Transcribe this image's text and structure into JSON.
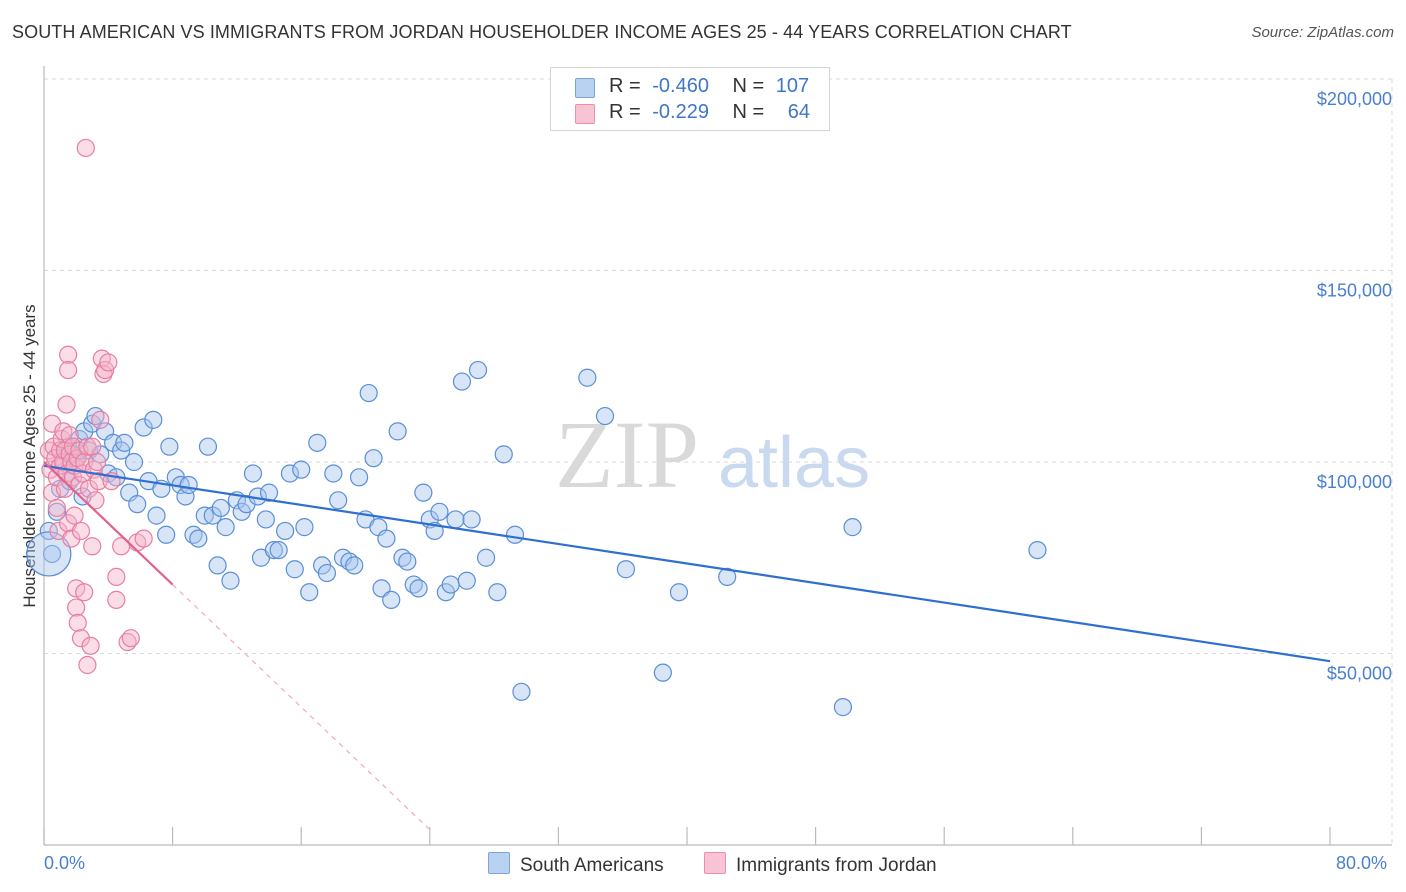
{
  "title": "SOUTH AMERICAN VS IMMIGRANTS FROM JORDAN HOUSEHOLDER INCOME AGES 25 - 44 YEARS CORRELATION CHART",
  "source": "Source: ZipAtlas.com",
  "watermark": {
    "zip": "ZIP",
    "atlas": "atlas"
  },
  "legend": {
    "r_label": "R =",
    "n_label": "N =",
    "rows": [
      {
        "r": "-0.460",
        "n": "107"
      },
      {
        "r": "-0.229",
        "n": "64"
      }
    ]
  },
  "colors": {
    "blue_fill": "#a9c6ee",
    "blue_stroke": "#5a8fd6",
    "blue_line": "#2f6fd0",
    "pink_fill": "#f5b3c9",
    "pink_stroke": "#e77fa2",
    "pink_line": "#e0628d",
    "grid": "#d9d9d9",
    "axis_text": "#4a7fcf"
  },
  "chart_data": {
    "type": "scatter",
    "title": "SOUTH AMERICAN VS IMMIGRANTS FROM JORDAN HOUSEHOLDER INCOME AGES 25 - 44 YEARS CORRELATION CHART",
    "xlabel": "",
    "ylabel": "Householder Income Ages 25 - 44 years",
    "xlim": [
      0,
      80
    ],
    "ylim": [
      0,
      200000
    ],
    "x_tick_labels": [
      "0.0%",
      "80.0%"
    ],
    "y_ticks": [
      50000,
      100000,
      150000,
      200000
    ],
    "y_tick_labels": [
      "$50,000",
      "$100,000",
      "$150,000",
      "$200,000"
    ],
    "grid": true,
    "legend_position": "top-center",
    "series": [
      {
        "name": "South Americans",
        "r": -0.46,
        "n": 107,
        "trend": {
          "x": [
            0,
            80
          ],
          "y": [
            99000,
            48000
          ]
        },
        "points": [
          [
            0.5,
            76000
          ],
          [
            0.8,
            87000
          ],
          [
            1.0,
            93000
          ],
          [
            1.2,
            99000
          ],
          [
            1.5,
            104000
          ],
          [
            1.8,
            102000
          ],
          [
            2.0,
            101000
          ],
          [
            2.2,
            106000
          ],
          [
            2.5,
            108000
          ],
          [
            2.8,
            103000
          ],
          [
            3.0,
            110000
          ],
          [
            3.2,
            112000
          ],
          [
            3.5,
            102000
          ],
          [
            3.8,
            108000
          ],
          [
            4.0,
            97000
          ],
          [
            4.3,
            105000
          ],
          [
            4.5,
            96000
          ],
          [
            4.8,
            103000
          ],
          [
            5.0,
            105000
          ],
          [
            5.3,
            92000
          ],
          [
            5.6,
            100000
          ],
          [
            5.8,
            89000
          ],
          [
            6.2,
            109000
          ],
          [
            6.5,
            95000
          ],
          [
            6.8,
            111000
          ],
          [
            7.0,
            86000
          ],
          [
            7.3,
            93000
          ],
          [
            7.6,
            81000
          ],
          [
            7.8,
            104000
          ],
          [
            8.2,
            96000
          ],
          [
            8.5,
            94000
          ],
          [
            8.8,
            91000
          ],
          [
            9.0,
            94000
          ],
          [
            9.3,
            81000
          ],
          [
            9.6,
            80000
          ],
          [
            10.0,
            86000
          ],
          [
            10.2,
            104000
          ],
          [
            10.5,
            86000
          ],
          [
            10.8,
            73000
          ],
          [
            11.0,
            88000
          ],
          [
            11.3,
            83000
          ],
          [
            11.6,
            69000
          ],
          [
            12.0,
            90000
          ],
          [
            12.3,
            87000
          ],
          [
            12.6,
            89000
          ],
          [
            13.0,
            97000
          ],
          [
            13.3,
            91000
          ],
          [
            13.5,
            75000
          ],
          [
            13.8,
            85000
          ],
          [
            14.0,
            92000
          ],
          [
            14.3,
            77000
          ],
          [
            14.6,
            77000
          ],
          [
            15.0,
            82000
          ],
          [
            15.3,
            97000
          ],
          [
            15.6,
            72000
          ],
          [
            16.0,
            98000
          ],
          [
            16.2,
            83000
          ],
          [
            16.5,
            66000
          ],
          [
            17.0,
            105000
          ],
          [
            17.3,
            73000
          ],
          [
            17.6,
            71000
          ],
          [
            18.0,
            97000
          ],
          [
            18.3,
            90000
          ],
          [
            18.6,
            75000
          ],
          [
            19.0,
            74000
          ],
          [
            19.3,
            73000
          ],
          [
            19.6,
            96000
          ],
          [
            20.0,
            85000
          ],
          [
            20.2,
            118000
          ],
          [
            20.5,
            101000
          ],
          [
            20.8,
            83000
          ],
          [
            21.0,
            67000
          ],
          [
            21.3,
            80000
          ],
          [
            21.6,
            64000
          ],
          [
            22.0,
            108000
          ],
          [
            22.3,
            75000
          ],
          [
            22.6,
            74000
          ],
          [
            23.0,
            68000
          ],
          [
            23.3,
            67000
          ],
          [
            23.6,
            92000
          ],
          [
            24.0,
            85000
          ],
          [
            24.3,
            82000
          ],
          [
            24.6,
            87000
          ],
          [
            25.0,
            66000
          ],
          [
            25.3,
            68000
          ],
          [
            25.6,
            85000
          ],
          [
            26.0,
            121000
          ],
          [
            26.3,
            69000
          ],
          [
            26.6,
            85000
          ],
          [
            27.0,
            124000
          ],
          [
            27.5,
            75000
          ],
          [
            28.2,
            66000
          ],
          [
            28.6,
            102000
          ],
          [
            29.3,
            81000
          ],
          [
            29.7,
            40000
          ],
          [
            33.8,
            122000
          ],
          [
            34.9,
            112000
          ],
          [
            36.2,
            72000
          ],
          [
            38.5,
            45000
          ],
          [
            39.5,
            66000
          ],
          [
            42.5,
            70000
          ],
          [
            49.7,
            36000
          ],
          [
            50.3,
            83000
          ],
          [
            61.8,
            77000
          ],
          [
            0.3,
            82000
          ],
          [
            1.6,
            95000
          ],
          [
            2.4,
            91000
          ]
        ]
      },
      {
        "name": "Immigrants from Jordan",
        "r": -0.229,
        "n": 64,
        "trend": {
          "x": [
            0,
            8
          ],
          "y": [
            100000,
            68000
          ],
          "dashed_extension_x": [
            8,
            24
          ],
          "dashed_extension_y": [
            68000,
            4000
          ]
        },
        "points": [
          [
            0.3,
            103000
          ],
          [
            0.4,
            98000
          ],
          [
            0.5,
            110000
          ],
          [
            0.5,
            92000
          ],
          [
            0.6,
            104000
          ],
          [
            0.7,
            101000
          ],
          [
            0.8,
            88000
          ],
          [
            0.8,
            96000
          ],
          [
            0.9,
            82000
          ],
          [
            1.0,
            103000
          ],
          [
            1.0,
            99000
          ],
          [
            1.1,
            106000
          ],
          [
            1.2,
            100000
          ],
          [
            1.2,
            108000
          ],
          [
            1.3,
            93000
          ],
          [
            1.3,
            103000
          ],
          [
            1.4,
            115000
          ],
          [
            1.4,
            97000
          ],
          [
            1.5,
            128000
          ],
          [
            1.5,
            124000
          ],
          [
            1.5,
            84000
          ],
          [
            1.6,
            102000
          ],
          [
            1.6,
            107000
          ],
          [
            1.7,
            100000
          ],
          [
            1.7,
            80000
          ],
          [
            1.8,
            104000
          ],
          [
            1.8,
            96000
          ],
          [
            1.9,
            99000
          ],
          [
            1.9,
            86000
          ],
          [
            2.0,
            62000
          ],
          [
            2.0,
            67000
          ],
          [
            2.1,
            101000
          ],
          [
            2.1,
            58000
          ],
          [
            2.2,
            103000
          ],
          [
            2.2,
            94000
          ],
          [
            2.3,
            54000
          ],
          [
            2.3,
            82000
          ],
          [
            2.4,
            97000
          ],
          [
            2.5,
            100000
          ],
          [
            2.5,
            66000
          ],
          [
            2.6,
            182000
          ],
          [
            2.7,
            104000
          ],
          [
            2.7,
            47000
          ],
          [
            2.8,
            93000
          ],
          [
            2.9,
            52000
          ],
          [
            3.0,
            104000
          ],
          [
            3.0,
            78000
          ],
          [
            3.1,
            98000
          ],
          [
            3.2,
            90000
          ],
          [
            3.3,
            100000
          ],
          [
            3.4,
            95000
          ],
          [
            3.5,
            111000
          ],
          [
            3.6,
            127000
          ],
          [
            3.7,
            123000
          ],
          [
            3.8,
            124000
          ],
          [
            4.0,
            126000
          ],
          [
            4.2,
            95000
          ],
          [
            4.5,
            70000
          ],
          [
            4.5,
            64000
          ],
          [
            4.8,
            78000
          ],
          [
            5.2,
            53000
          ],
          [
            5.4,
            54000
          ],
          [
            5.8,
            79000
          ],
          [
            6.2,
            80000
          ]
        ]
      }
    ],
    "bottom_legend": [
      "South Americans",
      "Immigrants from Jordan"
    ]
  }
}
